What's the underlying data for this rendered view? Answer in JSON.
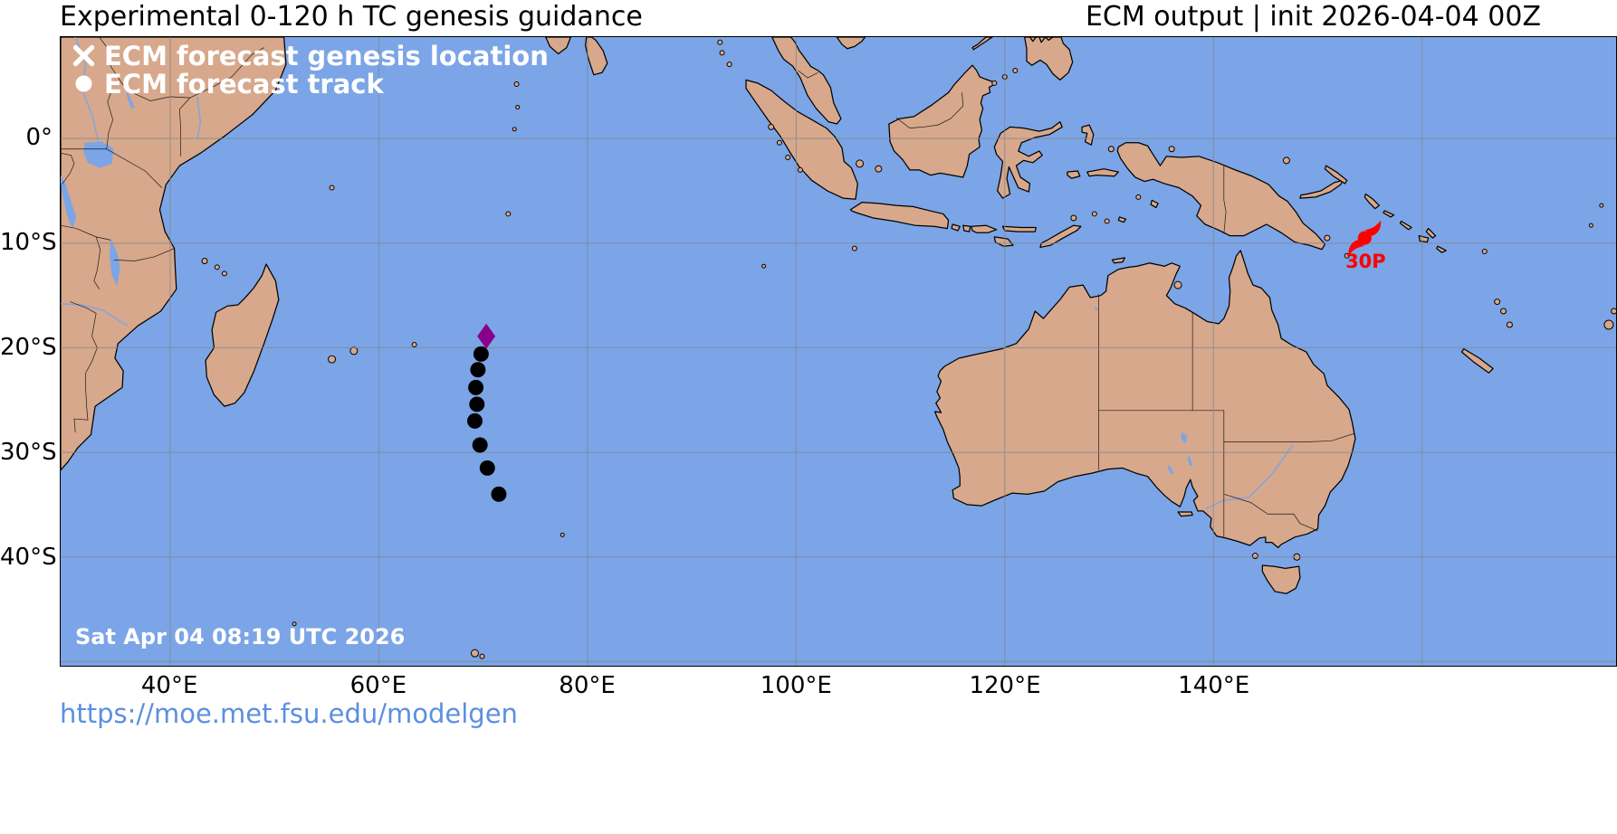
{
  "header": {
    "title": "Experimental 0-120 h TC genesis guidance",
    "right": "ECM output | init 2026-04-04 00Z"
  },
  "footer": {
    "url": "https://moe.met.fsu.edu/modelgen"
  },
  "map": {
    "timestamp": "Sat Apr 04 08:19 UTC 2026",
    "legend": [
      {
        "marker": "x-cross",
        "label": "ECM forecast genesis location"
      },
      {
        "marker": "dot",
        "label": "ECM forecast track"
      }
    ],
    "extent": {
      "lon_min": 29.5,
      "lon_max": 178.6,
      "lat_min": -50.4,
      "lat_max": 9.7
    },
    "lon_ticks": [
      {
        "value": 40,
        "label": "40°E"
      },
      {
        "value": 60,
        "label": "60°E"
      },
      {
        "value": 80,
        "label": "80°E"
      },
      {
        "value": 100,
        "label": "100°E"
      },
      {
        "value": 120,
        "label": "120°E"
      },
      {
        "value": 140,
        "label": "140°E"
      },
      {
        "value": 160,
        "label": ""
      }
    ],
    "lat_ticks": [
      {
        "value": 0,
        "label": "0°"
      },
      {
        "value": -10,
        "label": "10°S"
      },
      {
        "value": -20,
        "label": "20°S"
      },
      {
        "value": -30,
        "label": "30°S"
      },
      {
        "value": -40,
        "label": "40°S"
      },
      {
        "value": -50,
        "label": ""
      }
    ],
    "genesis": {
      "lon": 70.3,
      "lat": -18.9
    },
    "track_points": [
      {
        "lon": 69.8,
        "lat": -20.6
      },
      {
        "lon": 69.5,
        "lat": -22.1
      },
      {
        "lon": 69.3,
        "lat": -23.8
      },
      {
        "lon": 69.4,
        "lat": -25.4
      },
      {
        "lon": 69.2,
        "lat": -27.0
      },
      {
        "lon": 69.7,
        "lat": -29.3
      },
      {
        "lon": 70.4,
        "lat": -31.5
      },
      {
        "lon": 71.5,
        "lat": -34.0
      }
    ],
    "storms": [
      {
        "id": "30P",
        "lon": 154.5,
        "lat": -9.5
      }
    ],
    "colors": {
      "ocean": "#7ba5e6",
      "land": "#d7a88b",
      "coast": "#000000",
      "water": "#7ba5e6",
      "grid": "#82888f",
      "track": "#000000",
      "genesis": "#8b008b",
      "storm": "#ff0000",
      "link": "#5c8fe0"
    }
  }
}
